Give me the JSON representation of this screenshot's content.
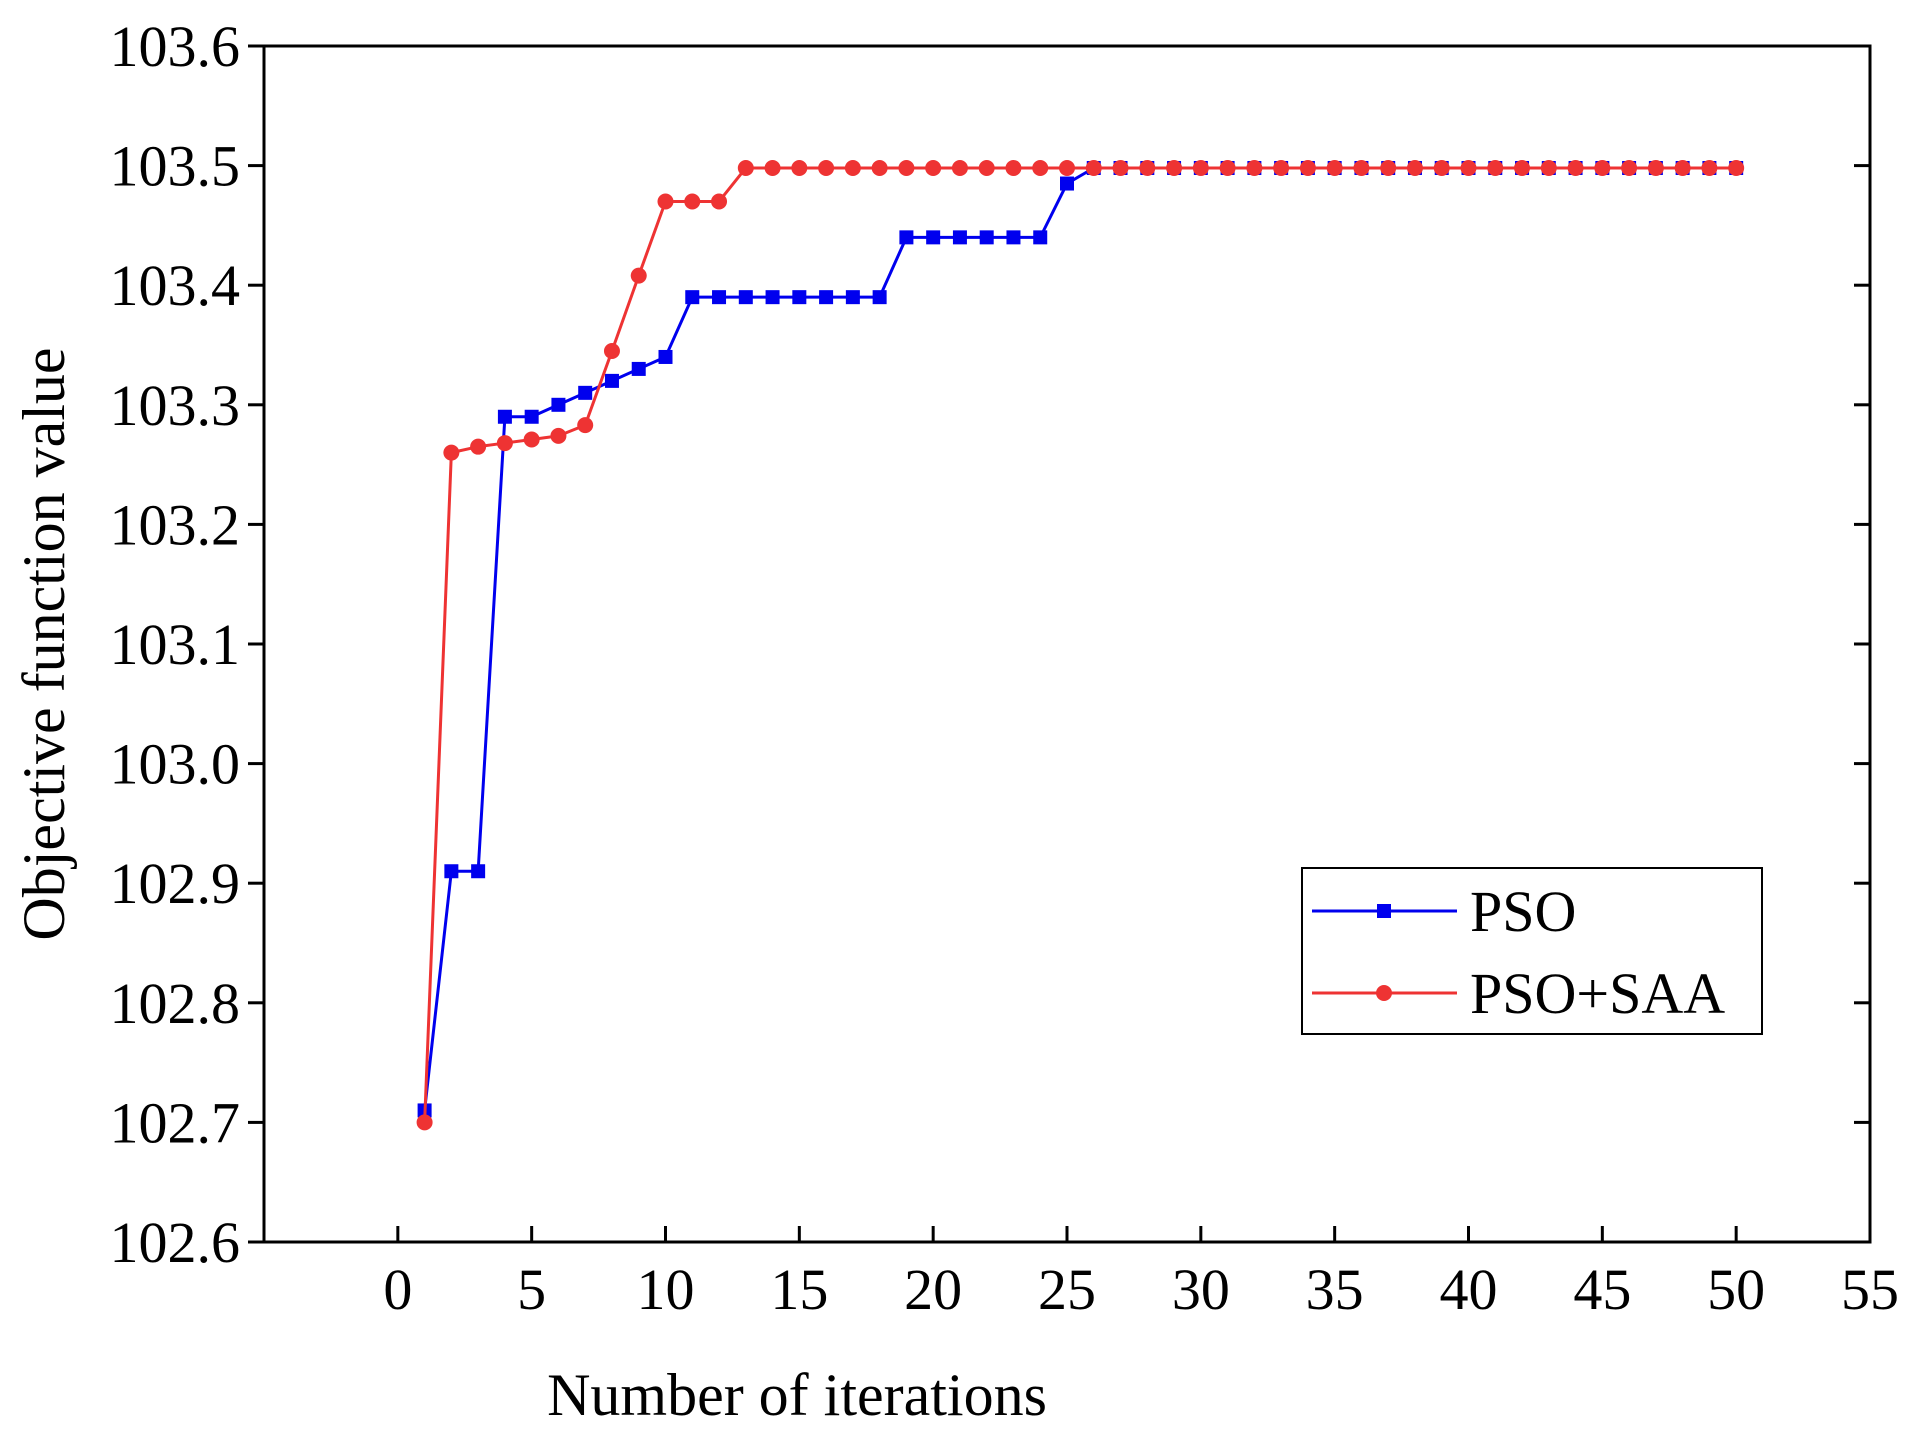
{
  "chart_data": {
    "type": "line",
    "title": "",
    "xlabel": "Number of iterations",
    "ylabel": "Objective function value",
    "xlim": [
      -5,
      55
    ],
    "ylim": [
      102.6,
      103.6
    ],
    "xticks": [
      0,
      5,
      10,
      15,
      20,
      25,
      30,
      35,
      40,
      45,
      50,
      55
    ],
    "yticks": [
      102.6,
      102.7,
      102.8,
      102.9,
      103.0,
      103.1,
      103.2,
      103.3,
      103.4,
      103.5,
      103.6
    ],
    "grid": false,
    "legend_position": "lower-right",
    "series": [
      {
        "name": "PSO",
        "color": "#0000ee",
        "marker": "square",
        "x": [
          1,
          2,
          3,
          4,
          5,
          6,
          7,
          8,
          9,
          10,
          11,
          12,
          13,
          14,
          15,
          16,
          17,
          18,
          19,
          20,
          21,
          22,
          23,
          24,
          25,
          26,
          27,
          28,
          29,
          30,
          31,
          32,
          33,
          34,
          35,
          36,
          37,
          38,
          39,
          40,
          41,
          42,
          43,
          44,
          45,
          46,
          47,
          48,
          49,
          50
        ],
        "values": [
          102.71,
          102.91,
          102.91,
          103.29,
          103.29,
          103.3,
          103.31,
          103.32,
          103.33,
          103.34,
          103.39,
          103.39,
          103.39,
          103.39,
          103.39,
          103.39,
          103.39,
          103.39,
          103.44,
          103.44,
          103.44,
          103.44,
          103.44,
          103.44,
          103.485,
          103.498,
          103.498,
          103.498,
          103.498,
          103.498,
          103.498,
          103.498,
          103.498,
          103.498,
          103.498,
          103.498,
          103.498,
          103.498,
          103.498,
          103.498,
          103.498,
          103.498,
          103.498,
          103.498,
          103.498,
          103.498,
          103.498,
          103.498,
          103.498,
          103.498
        ]
      },
      {
        "name": "PSO+SAA",
        "color": "#ee3333",
        "marker": "circle",
        "x": [
          1,
          2,
          3,
          4,
          5,
          6,
          7,
          8,
          9,
          10,
          11,
          12,
          13,
          14,
          15,
          16,
          17,
          18,
          19,
          20,
          21,
          22,
          23,
          24,
          25,
          26,
          27,
          28,
          29,
          30,
          31,
          32,
          33,
          34,
          35,
          36,
          37,
          38,
          39,
          40,
          41,
          42,
          43,
          44,
          45,
          46,
          47,
          48,
          49,
          50
        ],
        "values": [
          102.7,
          103.26,
          103.265,
          103.268,
          103.271,
          103.274,
          103.283,
          103.345,
          103.408,
          103.47,
          103.47,
          103.47,
          103.498,
          103.498,
          103.498,
          103.498,
          103.498,
          103.498,
          103.498,
          103.498,
          103.498,
          103.498,
          103.498,
          103.498,
          103.498,
          103.498,
          103.498,
          103.498,
          103.498,
          103.498,
          103.498,
          103.498,
          103.498,
          103.498,
          103.498,
          103.498,
          103.498,
          103.498,
          103.498,
          103.498,
          103.498,
          103.498,
          103.498,
          103.498,
          103.498,
          103.498,
          103.498,
          103.498,
          103.498,
          103.498
        ]
      }
    ]
  }
}
